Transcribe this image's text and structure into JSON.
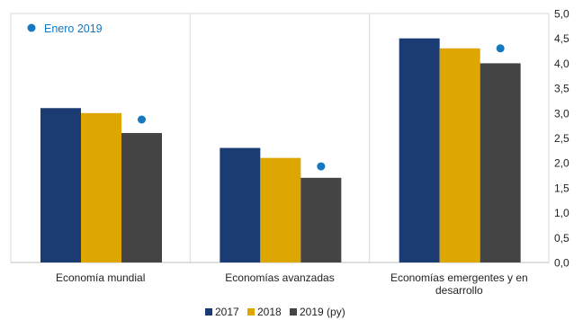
{
  "chart_data": {
    "type": "bar",
    "categories": [
      "Economía mundial",
      "Economías avanzadas",
      "Economías emergentes y en desarrollo"
    ],
    "category_lines": [
      [
        "Economía mundial"
      ],
      [
        "Economías avanzadas"
      ],
      [
        "Economías emergentes y en",
        "desarrollo"
      ]
    ],
    "series": [
      {
        "name": "2017",
        "values": [
          3.1,
          2.3,
          4.5
        ],
        "color": "#1b3c72"
      },
      {
        "name": "2018",
        "values": [
          3.0,
          2.1,
          4.3
        ],
        "color": "#dea600"
      },
      {
        "name": "2019 (py)",
        "values": [
          2.6,
          1.7,
          4.0
        ],
        "color": "#444444"
      }
    ],
    "markers": {
      "name": "Enero 2019",
      "values": [
        2.87,
        1.93,
        4.3
      ],
      "color": "#1578c0"
    },
    "y_ticks": [
      "0,0",
      "0,5",
      "1,0",
      "1,5",
      "2,0",
      "2,5",
      "3,0",
      "3,5",
      "4,0",
      "4,5",
      "5,0"
    ],
    "ylim": [
      0,
      5
    ],
    "y_axis_side": "right",
    "grid": false,
    "category_separators": true,
    "legend_placement": "bottom-center",
    "marker_legend_placement": "top-left",
    "title": "",
    "xlabel": "",
    "ylabel": ""
  }
}
